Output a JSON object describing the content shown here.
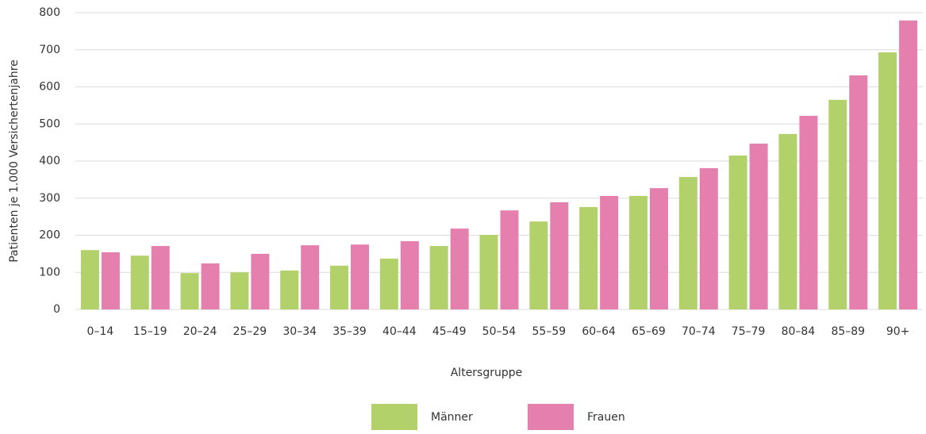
{
  "chart_data": {
    "type": "bar",
    "x_label": "Altersgruppe",
    "y_label": "Patienten je 1.000 Versichertenjahre",
    "categories": [
      "0–14",
      "15–19",
      "20–24",
      "25–29",
      "30–34",
      "35–39",
      "40–44",
      "45–49",
      "50–54",
      "55–59",
      "60–64",
      "65–69",
      "70–74",
      "75–79",
      "80–84",
      "85–89",
      "90+"
    ],
    "series": [
      {
        "name": "Männer",
        "color": "#b2d16b",
        "values": [
          160,
          145,
          98,
          100,
          105,
          118,
          137,
          171,
          201,
          237,
          276,
          306,
          357,
          415,
          473,
          565,
          693
        ]
      },
      {
        "name": "Frauen",
        "color": "#e57fae",
        "values": [
          154,
          171,
          124,
          150,
          173,
          175,
          184,
          218,
          267,
          289,
          306,
          327,
          381,
          447,
          522,
          631,
          779
        ]
      }
    ],
    "ylim": [
      0,
      800
    ],
    "yticks": [
      0,
      100,
      200,
      300,
      400,
      500,
      600,
      700,
      800
    ],
    "grid": true,
    "legend": "bottom"
  }
}
